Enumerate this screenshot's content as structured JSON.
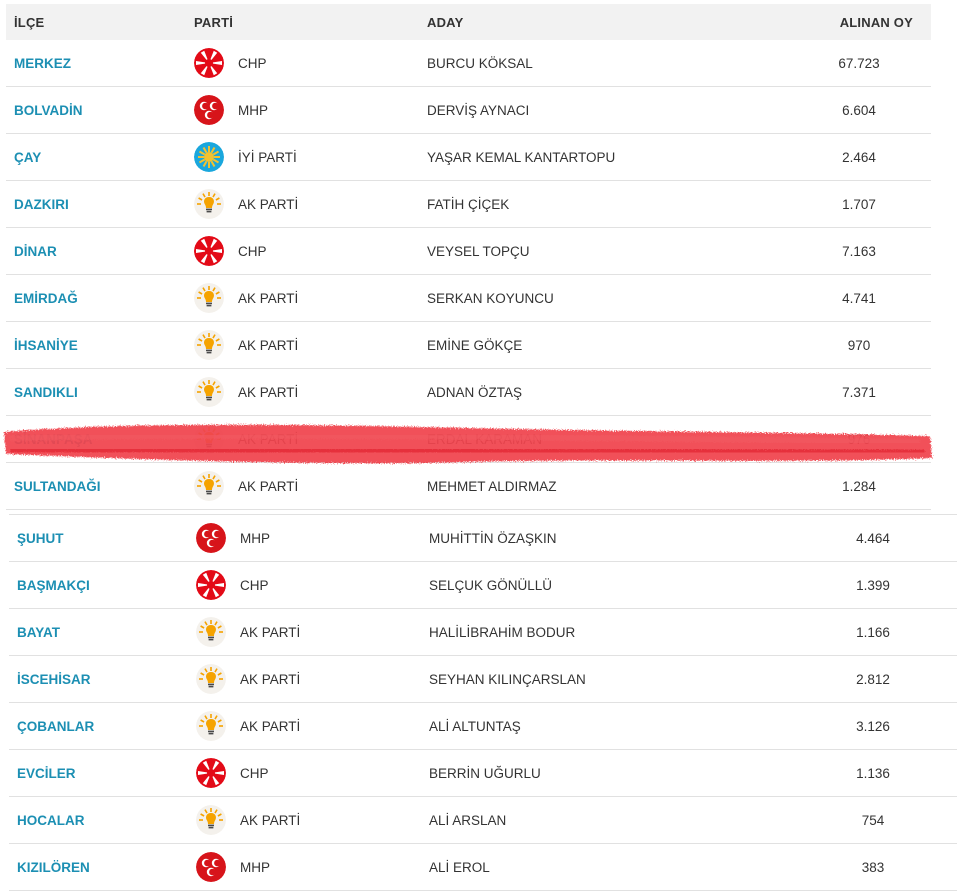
{
  "header": {
    "ilce": "İLÇE",
    "parti": "PARTİ",
    "aday": "ADAY",
    "oy": "ALINAN OY"
  },
  "colors": {
    "district_link": "#1c8fb3",
    "chp": "#e30a17",
    "mhp": "#d7141a",
    "iyi": "#1aa7dd",
    "akp": "#f5a300",
    "scribble": "#ee2a35"
  },
  "rows_a": [
    {
      "ilce": "MERKEZ",
      "party": "CHP",
      "logo": "chp-logo-icon",
      "aday": "BURCU KÖKSAL",
      "oy": "67.723"
    },
    {
      "ilce": "BOLVADİN",
      "party": "MHP",
      "logo": "mhp-logo-icon",
      "aday": "DERVİŞ AYNACI",
      "oy": "6.604"
    },
    {
      "ilce": "ÇAY",
      "party": "İYİ PARTİ",
      "logo": "iyi-parti-logo-icon",
      "aday": "YAŞAR KEMAL KANTARTOPU",
      "oy": "2.464"
    },
    {
      "ilce": "DAZKIRI",
      "party": "AK PARTİ",
      "logo": "ak-parti-logo-icon",
      "aday": "FATİH ÇİÇEK",
      "oy": "1.707"
    },
    {
      "ilce": "DİNAR",
      "party": "CHP",
      "logo": "chp-logo-icon",
      "aday": "VEYSEL TOPÇU",
      "oy": "7.163"
    },
    {
      "ilce": "EMİRDAĞ",
      "party": "AK PARTİ",
      "logo": "ak-parti-logo-icon",
      "aday": "SERKAN KOYUNCU",
      "oy": "4.741"
    },
    {
      "ilce": "İHSANİYE",
      "party": "AK PARTİ",
      "logo": "ak-parti-logo-icon",
      "aday": "EMİNE GÖKÇE",
      "oy": "970"
    },
    {
      "ilce": "SANDIKLI",
      "party": "AK PARTİ",
      "logo": "ak-parti-logo-icon",
      "aday": "ADNAN ÖZTAŞ",
      "oy": "7.371"
    },
    {
      "ilce": "SİNANPAŞA",
      "party": "AK PARTİ",
      "logo": "ak-parti-logo-icon",
      "aday": "ERDAL KARAMAN",
      "oy": "976",
      "redacted": true
    },
    {
      "ilce": "SULTANDAĞI",
      "party": "AK PARTİ",
      "logo": "ak-parti-logo-icon",
      "aday": "MEHMET ALDIRMAZ",
      "oy": "1.284"
    }
  ],
  "rows_b": [
    {
      "ilce": "ŞUHUT",
      "party": "MHP",
      "logo": "mhp-logo-icon",
      "aday": "MUHİTTİN ÖZAŞKIN",
      "oy": "4.464"
    },
    {
      "ilce": "BAŞMAKÇI",
      "party": "CHP",
      "logo": "chp-logo-icon",
      "aday": "SELÇUK GÖNÜLLÜ",
      "oy": "1.399"
    },
    {
      "ilce": "BAYAT",
      "party": "AK PARTİ",
      "logo": "ak-parti-logo-icon",
      "aday": "HALİLİBRAHİM BODUR",
      "oy": "1.166"
    },
    {
      "ilce": "İSCEHİSAR",
      "party": "AK PARTİ",
      "logo": "ak-parti-logo-icon",
      "aday": "SEYHAN KILINÇARSLAN",
      "oy": "2.812"
    },
    {
      "ilce": "ÇOBANLAR",
      "party": "AK PARTİ",
      "logo": "ak-parti-logo-icon",
      "aday": "ALİ ALTUNTAŞ",
      "oy": "3.126"
    },
    {
      "ilce": "EVCİLER",
      "party": "CHP",
      "logo": "chp-logo-icon",
      "aday": "BERRİN UĞURLU",
      "oy": "1.136"
    },
    {
      "ilce": "HOCALAR",
      "party": "AK PARTİ",
      "logo": "ak-parti-logo-icon",
      "aday": "ALİ ARSLAN",
      "oy": "754"
    },
    {
      "ilce": "KIZILÖREN",
      "party": "MHP",
      "logo": "mhp-logo-icon",
      "aday": "ALİ EROL",
      "oy": "383"
    }
  ]
}
